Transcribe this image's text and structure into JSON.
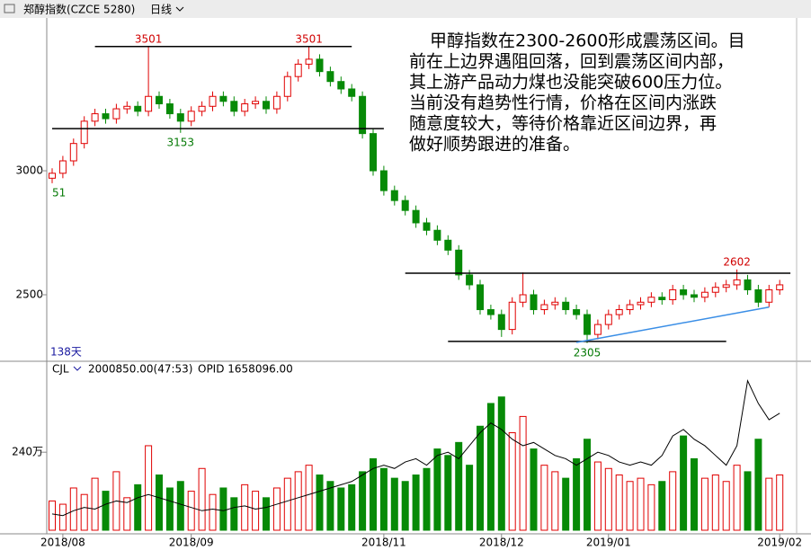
{
  "chart_data": {
    "type": "candlestick",
    "title": "郑醇指数(CZCE 5280)",
    "period": "日线",
    "days_label": "138天",
    "volume_title": "CJL",
    "volume_value": "2000850.00(47:53)",
    "opid_value": "OPID 1658096.00",
    "note_lines": [
      "甲醇指数在2300-2600形成震荡区间。目",
      "前在上边界遇阻回落，回到震荡区间内部，",
      "其上游产品动力煤也没能突破600压力位。",
      "当前没有趋势性行情，价格在区间内涨跌",
      "随意度较大，等待价格靠近区间边界，再",
      "做好顺势跟进的准备。"
    ],
    "open": [
      2970,
      2990,
      3040,
      3110,
      3200,
      3230,
      3210,
      3250,
      3260,
      3240,
      3300,
      3270,
      3230,
      3200,
      3240,
      3260,
      3300,
      3280,
      3240,
      3270,
      3280,
      3250,
      3300,
      3380,
      3430,
      3450,
      3400,
      3360,
      3330,
      3300,
      3150,
      3000,
      2920,
      2880,
      2840,
      2790,
      2760,
      2720,
      2680,
      2580,
      2540,
      2440,
      2420,
      2360,
      2470,
      2500,
      2440,
      2460,
      2470,
      2440,
      2420,
      2340,
      2380,
      2420,
      2440,
      2460,
      2470,
      2490,
      2480,
      2520,
      2500,
      2490,
      2510,
      2530,
      2540,
      2560,
      2520,
      2470,
      2520
    ],
    "high": [
      3010,
      3060,
      3130,
      3220,
      3250,
      3250,
      3270,
      3280,
      3280,
      3501,
      3320,
      3290,
      3250,
      3260,
      3280,
      3320,
      3320,
      3300,
      3290,
      3300,
      3300,
      3320,
      3400,
      3450,
      3501,
      3470,
      3420,
      3380,
      3350,
      3320,
      3170,
      3020,
      2940,
      2900,
      2860,
      2810,
      2780,
      2740,
      2700,
      2600,
      2560,
      2460,
      2440,
      2490,
      2590,
      2520,
      2480,
      2490,
      2490,
      2460,
      2440,
      2400,
      2440,
      2460,
      2480,
      2490,
      2510,
      2510,
      2540,
      2540,
      2520,
      2530,
      2550,
      2560,
      2602,
      2580,
      2540,
      2540,
      2560
    ],
    "low": [
      2950,
      2970,
      3020,
      3090,
      3180,
      3190,
      3190,
      3230,
      3220,
      3220,
      3250,
      3210,
      3153,
      3180,
      3220,
      3240,
      3260,
      3220,
      3220,
      3250,
      3230,
      3230,
      3280,
      3360,
      3410,
      3380,
      3340,
      3310,
      3280,
      3130,
      2980,
      2900,
      2860,
      2820,
      2770,
      2740,
      2700,
      2660,
      2560,
      2520,
      2420,
      2400,
      2330,
      2340,
      2450,
      2420,
      2420,
      2440,
      2420,
      2400,
      2305,
      2320,
      2360,
      2400,
      2420,
      2440,
      2450,
      2460,
      2460,
      2480,
      2470,
      2470,
      2490,
      2510,
      2520,
      2500,
      2450,
      2450,
      2500
    ],
    "close": [
      2990,
      3040,
      3110,
      3200,
      3230,
      3210,
      3250,
      3260,
      3240,
      3300,
      3270,
      3230,
      3200,
      3240,
      3260,
      3300,
      3280,
      3240,
      3270,
      3280,
      3250,
      3300,
      3380,
      3430,
      3450,
      3400,
      3360,
      3330,
      3300,
      3150,
      3000,
      2920,
      2880,
      2840,
      2790,
      2760,
      2720,
      2680,
      2580,
      2540,
      2440,
      2420,
      2360,
      2470,
      2500,
      2440,
      2460,
      2470,
      2440,
      2420,
      2340,
      2380,
      2420,
      2440,
      2460,
      2470,
      2490,
      2480,
      2520,
      2500,
      2490,
      2510,
      2530,
      2540,
      2560,
      2520,
      2470,
      2520,
      2540
    ],
    "volume": [
      900000,
      800000,
      1300000,
      1100000,
      1600000,
      1200000,
      1800000,
      1000000,
      1400000,
      2600000,
      1700000,
      1300000,
      1500000,
      1200000,
      1900000,
      1100000,
      1300000,
      1000000,
      1400000,
      1200000,
      1000000,
      1300000,
      1600000,
      1800000,
      2000000,
      1700000,
      1500000,
      1300000,
      1400000,
      1800000,
      2200000,
      1900000,
      1600000,
      1500000,
      1700000,
      1900000,
      2500000,
      2300000,
      2700000,
      2000000,
      3200000,
      3900000,
      4100000,
      3000000,
      3500000,
      2500000,
      2000000,
      1800000,
      1600000,
      2200000,
      2800000,
      2100000,
      1900000,
      1700000,
      1500000,
      1600000,
      1400000,
      1500000,
      1800000,
      2900000,
      2200000,
      1600000,
      1700000,
      1500000,
      2000000,
      1800000,
      2800000,
      1600000,
      1700000
    ],
    "opid": [
      500000,
      450000,
      600000,
      700000,
      650000,
      800000,
      900000,
      850000,
      1000000,
      1100000,
      1000000,
      900000,
      800000,
      700000,
      600000,
      650000,
      600000,
      700000,
      750000,
      650000,
      700000,
      800000,
      900000,
      1000000,
      1100000,
      1200000,
      1300000,
      1400000,
      1500000,
      1700000,
      1900000,
      2000000,
      1900000,
      2100000,
      2200000,
      2000000,
      2300000,
      2400000,
      2200000,
      2600000,
      3000000,
      3300000,
      3100000,
      2800000,
      2600000,
      2700000,
      2500000,
      2300000,
      2200000,
      2000000,
      2200000,
      2400000,
      2300000,
      2100000,
      2000000,
      2100000,
      2000000,
      2300000,
      2900000,
      3100000,
      2800000,
      2600000,
      2300000,
      2000000,
      2600000,
      4600000,
      3900000,
      3400000,
      3600000
    ],
    "up_color": "#e00000",
    "down_color": "#078a07",
    "ylim": [
      2239,
      3609
    ],
    "yticks": [
      2500,
      3000
    ],
    "volume_ylim": [
      0,
      4700000
    ],
    "volume_yticks": [
      {
        "value": 2400000,
        "label": "240万"
      }
    ],
    "xticks": [
      {
        "value": 1,
        "label": "2018/08"
      },
      {
        "value": 13,
        "label": "2018/09"
      },
      {
        "value": 31,
        "label": "2018/11"
      },
      {
        "value": 42,
        "label": "2018/12"
      },
      {
        "value": 52,
        "label": "2019/01"
      },
      {
        "value": 68,
        "label": "2019/02"
      }
    ],
    "annotations": [
      {
        "label": "3501",
        "index": 9,
        "position": "above",
        "color": "#d00000"
      },
      {
        "label": "3501",
        "index": 24,
        "position": "above",
        "color": "#d00000"
      },
      {
        "label": "3153",
        "index": 12,
        "position": "below",
        "color": "#067a06"
      },
      {
        "label": "51",
        "index": 0,
        "position": "below",
        "color": "#067a06"
      },
      {
        "label": "2602",
        "index": 64,
        "position": "above",
        "color": "#d00000"
      },
      {
        "label": "2305",
        "index": 50,
        "position": "below",
        "color": "#067a06"
      }
    ],
    "lines": [
      {
        "from": 4,
        "to": 28,
        "start": 3501,
        "end": 3501,
        "color": "#000000"
      },
      {
        "from": 0,
        "to": 31,
        "start": 3170,
        "end": 3170,
        "color": "#000000"
      },
      {
        "from": 33,
        "to": 69,
        "start": 2587,
        "end": 2587,
        "color": "#000000"
      },
      {
        "from": 37,
        "to": 63,
        "start": 2312,
        "end": 2312,
        "color": "#000000"
      },
      {
        "from": 49,
        "to": 67,
        "start": 2308,
        "end": 2450,
        "color": "#3a8ee6"
      }
    ]
  }
}
